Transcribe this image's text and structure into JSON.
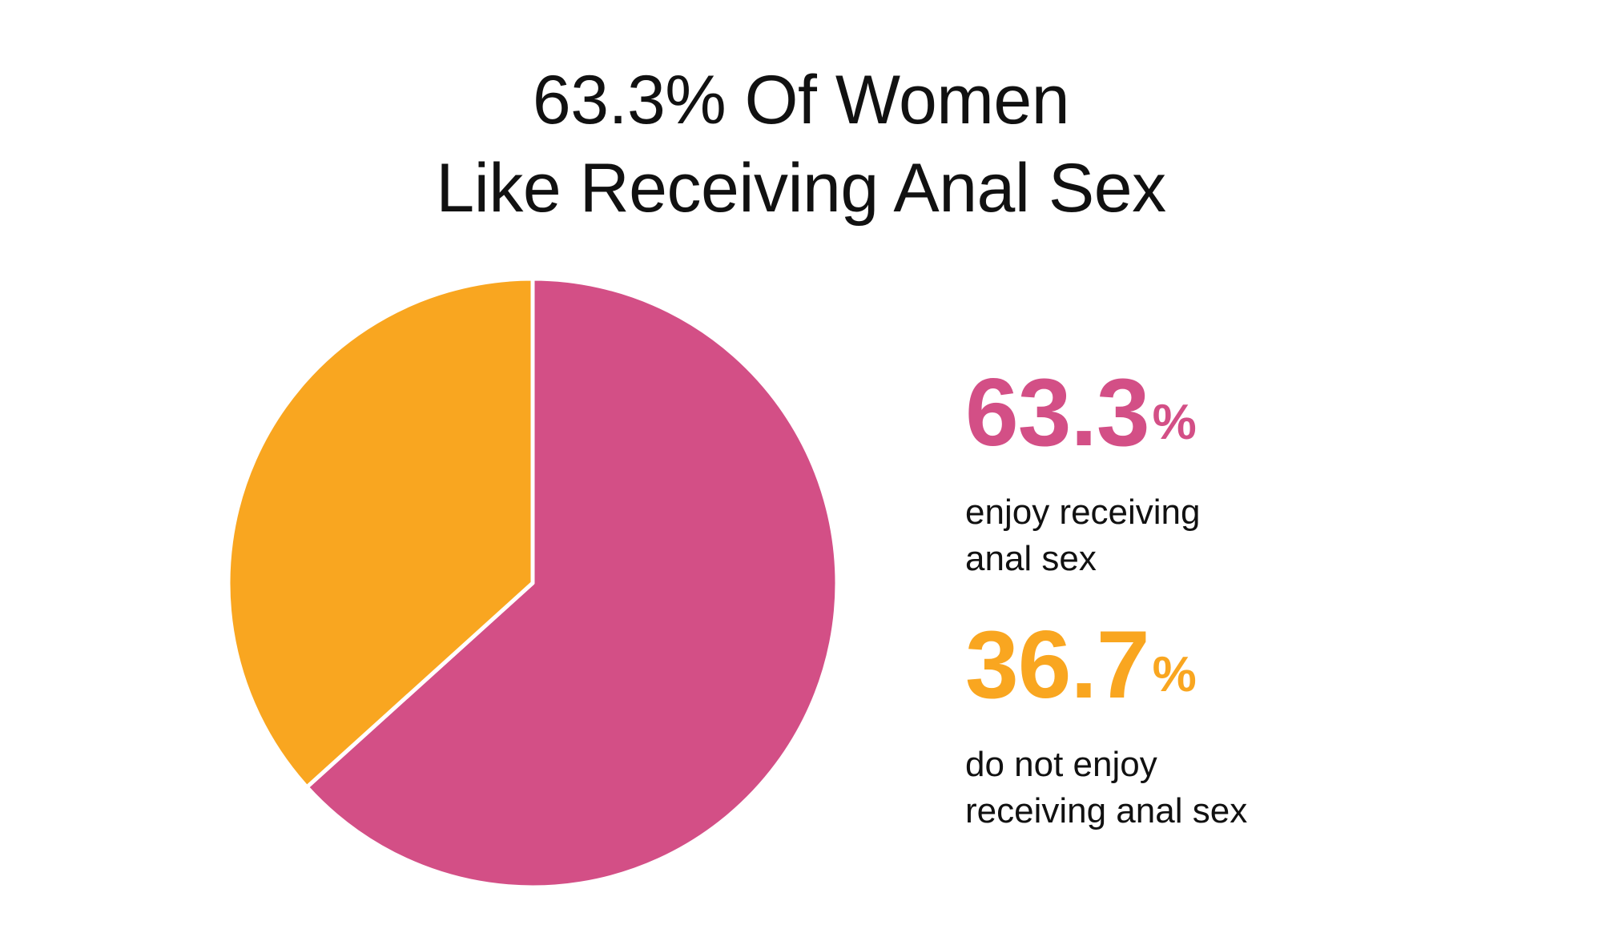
{
  "title_lines": [
    "63.3% Of Women",
    "Like Receiving Anal Sex"
  ],
  "colors": {
    "enjoy": "#D34F86",
    "not_enjoy": "#F9A620",
    "divider": "#ffffff"
  },
  "chart_data": {
    "type": "pie",
    "title": "63.3% Of Women Like Receiving Anal Sex",
    "slices": [
      {
        "label": "enjoy receiving anal sex",
        "value": 63.3,
        "color": "#D34F86"
      },
      {
        "label": "do not enjoy receiving anal sex",
        "value": 36.7,
        "color": "#F9A620"
      }
    ],
    "start_angle": "12 o'clock",
    "direction": "clockwise",
    "legend_placement": "right"
  },
  "legend": [
    {
      "value": "63.3",
      "unit": "%",
      "desc_lines": [
        "enjoy receiving",
        "anal sex"
      ],
      "color": "#D34F86"
    },
    {
      "value": "36.7",
      "unit": "%",
      "desc_lines": [
        "do not enjoy",
        "receiving anal sex"
      ],
      "color": "#F9A620"
    }
  ]
}
